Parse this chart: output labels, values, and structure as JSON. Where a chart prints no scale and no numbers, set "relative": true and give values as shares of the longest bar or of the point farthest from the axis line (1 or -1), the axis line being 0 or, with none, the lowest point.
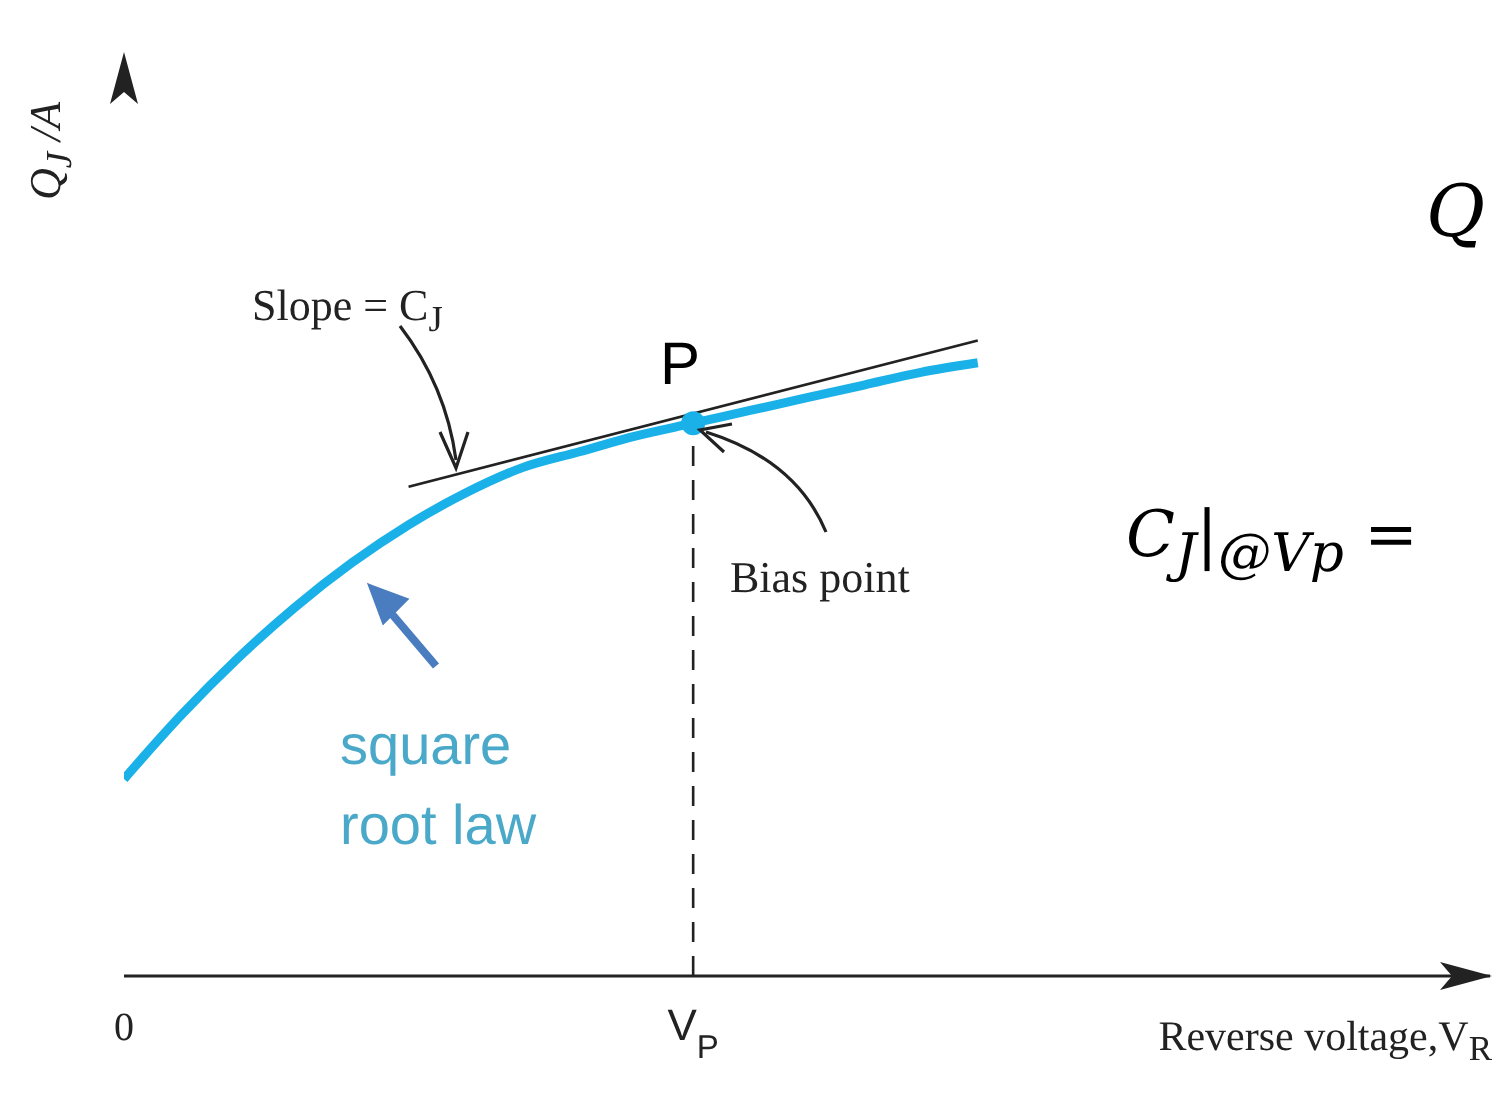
{
  "chart_data": {
    "type": "line",
    "relative": true,
    "xlabel": "Reverse voltage,V$_{R}$",
    "ylabel": "Q$_{J}$ /A",
    "categories": [
      "0",
      null,
      null,
      null,
      null,
      null,
      null,
      null,
      null,
      null,
      "V$_{P}$",
      null,
      null,
      null,
      null,
      null,
      null,
      null,
      null,
      null,
      null,
      null,
      null,
      null,
      null
    ],
    "series": [
      {
        "color": "#1ab0e8",
        "values": [
          0.31,
          0.41,
          0.5,
          0.58,
          0.65,
          0.71,
          0.76,
          0.8,
          0.825,
          0.85,
          0.87,
          0.89,
          0.91,
          0.93,
          0.95,
          0.965,
          null,
          null,
          null,
          null,
          null,
          null,
          null,
          null,
          null
        ]
      },
      {
        "color": "#222222",
        "values": [
          null,
          null,
          null,
          null,
          null,
          0.77,
          null,
          null,
          null,
          null,
          null,
          null,
          null,
          null,
          null,
          1,
          null,
          null,
          null,
          null,
          null,
          null,
          null,
          null,
          null
        ]
      },
      {
        "type": "scatter",
        "color": "#1ab0e8",
        "values": [
          null,
          null,
          null,
          null,
          null,
          null,
          null,
          null,
          null,
          null,
          0.87,
          null,
          null,
          null,
          null,
          null,
          null,
          null,
          null,
          null,
          null,
          null,
          null,
          null,
          null
        ],
        "marker": "circle"
      }
    ],
    "ref_lines": [
      {
        "axis": "x",
        "value": "V$_{P}$",
        "color": "#222222",
        "line_style": "dashed"
      }
    ],
    "annotations": [
      "Slope = C$_{J}$",
      {
        "text": "P",
        "x": "V$_{P}$",
        "y": 0.87
      },
      "Bias point",
      "square root law",
      "Q",
      "C$_{J}$|$_{@V}$$_{p}$ ="
    ],
    "legend": false,
    "grid": false
  }
}
